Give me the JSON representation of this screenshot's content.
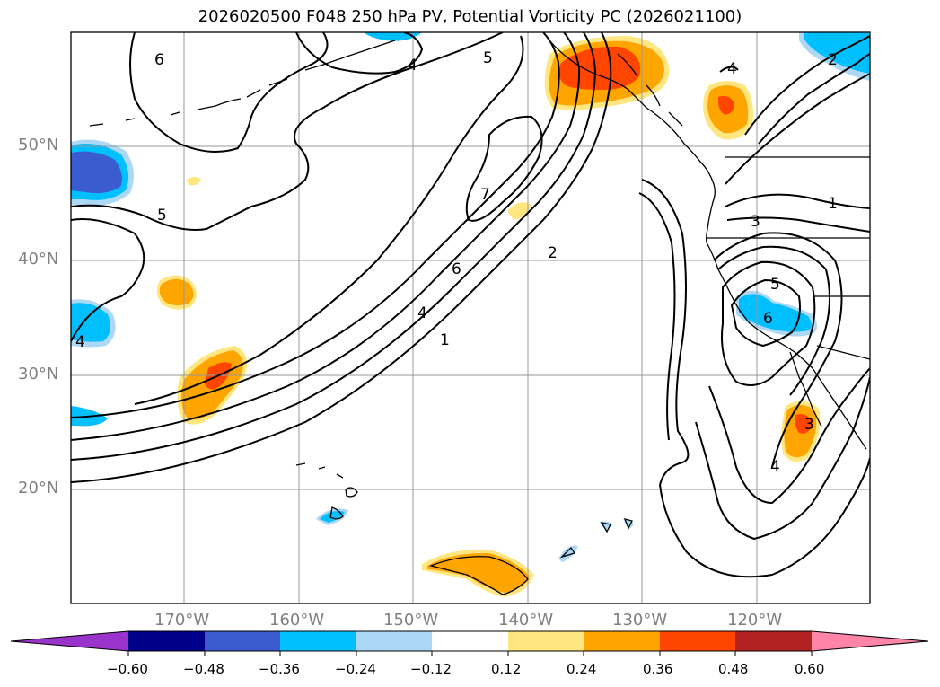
{
  "title": "2026020500 F048 250 hPa PV, Potential Vorticity PC (2026021100)",
  "lat_labels": [
    "50°N",
    "40°N",
    "30°N",
    "20°N"
  ],
  "lon_labels": [
    "170°W",
    "160°W",
    "150°W",
    "140°W",
    "130°W",
    "120°W"
  ],
  "colorbar": {
    "ticks": [
      "−0.60",
      "−0.48",
      "−0.36",
      "−0.24",
      "−0.12",
      "0.12",
      "0.24",
      "0.36",
      "0.48",
      "0.60"
    ],
    "colors": [
      "#9933cc",
      "#00008b",
      "#3b5bd1",
      "#00bfff",
      "#add8f5",
      "#ffffff",
      "#ffe680",
      "#ffa500",
      "#ff4500",
      "#b22222",
      "#ff85a8"
    ]
  },
  "contour_labels": [
    "6",
    "4",
    "5",
    "5",
    "7",
    "6",
    "4",
    "1",
    "2",
    "4",
    "2",
    "1",
    "3",
    "5",
    "6",
    "3",
    "4",
    "4"
  ],
  "colors": {
    "orange": "#ffa500",
    "orange_red": "#ff4500",
    "light_yellow": "#ffe680",
    "deep_sky_blue": "#00bfff",
    "light_blue": "#add8f5",
    "royal_blue": "#3b5bd1"
  }
}
